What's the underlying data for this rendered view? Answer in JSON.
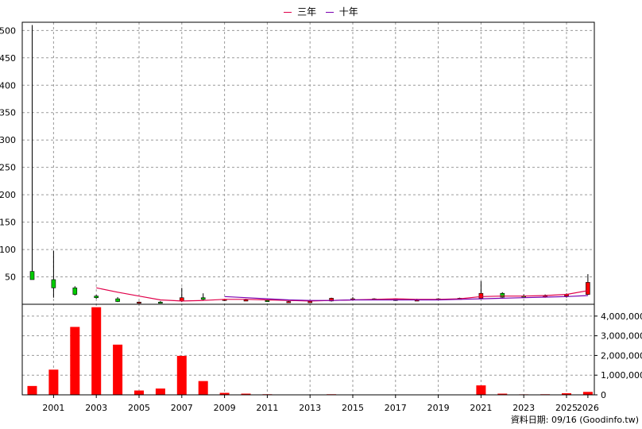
{
  "legend": [
    {
      "name": "三年",
      "color": "#e0004a"
    },
    {
      "name": "十年",
      "color": "#7a00b0"
    }
  ],
  "footer": {
    "source": "資料日期: 09/16  (Goodinfo.tw)"
  },
  "colors": {
    "up": "#ff0000",
    "down": "#00cc00",
    "volume": "#ff0000",
    "ma3": "#e0004a",
    "ma10": "#7a00b0"
  },
  "chart_data": [
    {
      "type": "candlestick",
      "title": "",
      "ylim": [
        0,
        515
      ],
      "yticks": [
        50,
        100,
        150,
        200,
        250,
        300,
        350,
        400,
        450,
        500
      ],
      "grid": true,
      "legend_position": "top-center",
      "x": [
        2000,
        2001,
        2002,
        2003,
        2004,
        2005,
        2006,
        2007,
        2008,
        2009,
        2010,
        2011,
        2012,
        2013,
        2014,
        2015,
        2016,
        2017,
        2018,
        2019,
        2020,
        2021,
        2022,
        2023,
        2024,
        2025,
        2026
      ],
      "x_tick_labels": [
        "2001",
        "2003",
        "2005",
        "2007",
        "2009",
        "2011",
        "2013",
        "2015",
        "2017",
        "2019",
        "2021",
        "2023",
        "2025",
        "2026"
      ],
      "ohlc": [
        [
          60,
          510,
          45,
          45
        ],
        [
          45,
          98,
          12,
          30
        ],
        [
          30,
          33,
          16,
          18
        ],
        [
          15,
          17,
          10,
          12
        ],
        [
          10,
          13,
          4,
          5
        ],
        [
          4,
          5,
          3,
          4
        ],
        [
          4,
          6,
          2,
          3
        ],
        [
          6,
          30,
          4,
          12
        ],
        [
          12,
          20,
          7,
          9
        ],
        [
          8,
          10,
          6,
          9
        ],
        [
          8,
          10,
          6,
          8
        ],
        [
          7,
          8,
          5,
          6
        ],
        [
          5,
          6,
          4,
          5
        ],
        [
          5,
          6,
          4,
          5
        ],
        [
          6,
          12,
          5,
          11
        ],
        [
          8,
          13,
          7,
          10
        ],
        [
          9,
          11,
          8,
          10
        ],
        [
          9,
          10,
          8,
          9
        ],
        [
          8,
          10,
          7,
          8
        ],
        [
          9,
          11,
          8,
          10
        ],
        [
          10,
          12,
          9,
          11
        ],
        [
          11,
          42,
          10,
          20
        ],
        [
          20,
          22,
          12,
          13
        ],
        [
          15,
          18,
          13,
          14
        ],
        [
          14,
          18,
          12,
          15
        ],
        [
          15,
          20,
          12,
          18
        ],
        [
          18,
          55,
          17,
          40
        ]
      ],
      "series": [
        {
          "name": "三年",
          "values": [
            null,
            null,
            null,
            30,
            22,
            15,
            8,
            6,
            7,
            9,
            9,
            8,
            7,
            6,
            7,
            8,
            9,
            10,
            9,
            9,
            10,
            14,
            15,
            15,
            16,
            18,
            25
          ]
        },
        {
          "name": "十年",
          "values": [
            null,
            null,
            null,
            null,
            null,
            null,
            null,
            null,
            null,
            14,
            12,
            10,
            8,
            7,
            7,
            8,
            8,
            8,
            8,
            8,
            9,
            10,
            11,
            12,
            13,
            14,
            16
          ]
        }
      ]
    },
    {
      "type": "bar",
      "title": "",
      "ylim": [
        0,
        4600000
      ],
      "yticks": [
        0,
        1000000,
        2000000,
        3000000,
        4000000
      ],
      "ytick_labels": [
        "0",
        "1,000,000",
        "2,000,000",
        "3,000,000",
        "4,000,000"
      ],
      "grid": true,
      "x": [
        2000,
        2001,
        2002,
        2003,
        2004,
        2005,
        2006,
        2007,
        2008,
        2009,
        2010,
        2011,
        2012,
        2013,
        2014,
        2015,
        2016,
        2017,
        2018,
        2019,
        2020,
        2021,
        2022,
        2023,
        2024,
        2025,
        2026
      ],
      "values": [
        450000,
        1280000,
        3450000,
        4450000,
        2550000,
        220000,
        320000,
        1980000,
        700000,
        100000,
        60000,
        30000,
        20000,
        20000,
        30000,
        20000,
        20000,
        15000,
        15000,
        20000,
        20000,
        480000,
        60000,
        25000,
        30000,
        80000,
        150000
      ]
    }
  ]
}
